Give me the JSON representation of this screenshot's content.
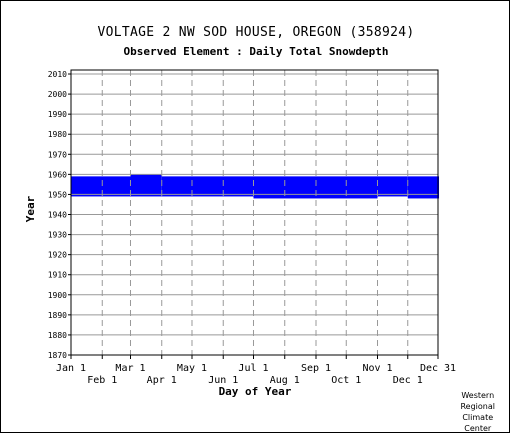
{
  "header": {
    "station_title": "VOLTAGE 2 NW SOD HOUSE, OREGON   (358924)",
    "element_title": "Observed Element : Daily Total Snowdepth"
  },
  "credit": [
    "Western",
    "Regional",
    "Climate",
    "Center"
  ],
  "colors": {
    "data": "#0000ff",
    "grid": "#999999",
    "axes": "#000000",
    "background": "#ffffff"
  },
  "chart_data": {
    "type": "heatmap",
    "title": "Observed Element : Daily Total Snowdepth",
    "xlabel": "Day of Year",
    "ylabel": "Year",
    "ylim": [
      1870,
      2012
    ],
    "xlim": [
      1,
      365
    ],
    "y_ticks": [
      1870,
      1880,
      1890,
      1900,
      1910,
      1920,
      1930,
      1940,
      1950,
      1960,
      1970,
      1980,
      1990,
      2000,
      2010
    ],
    "x_ticks_upper": [
      {
        "label": "Jan 1",
        "day": 1
      },
      {
        "label": "Mar 1",
        "day": 60
      },
      {
        "label": "May 1",
        "day": 121
      },
      {
        "label": "Jul 1",
        "day": 182
      },
      {
        "label": "Sep 1",
        "day": 244
      },
      {
        "label": "Nov 1",
        "day": 305
      },
      {
        "label": "Dec 31",
        "day": 365
      }
    ],
    "x_ticks_lower": [
      {
        "label": "Feb 1",
        "day": 32
      },
      {
        "label": "Apr 1",
        "day": 91
      },
      {
        "label": "Jun 1",
        "day": 152
      },
      {
        "label": "Aug 1",
        "day": 213
      },
      {
        "label": "Oct 1",
        "day": 274
      },
      {
        "label": "Dec 1",
        "day": 335
      }
    ],
    "grid": true,
    "coverage": [
      {
        "start_day": 1,
        "end_day": 59,
        "year_from": 1949,
        "year_to": 1958
      },
      {
        "start_day": 60,
        "end_day": 90,
        "year_from": 1949,
        "year_to": 1959
      },
      {
        "start_day": 91,
        "end_day": 181,
        "year_from": 1949,
        "year_to": 1958
      },
      {
        "start_day": 182,
        "end_day": 304,
        "year_from": 1948,
        "year_to": 1958
      },
      {
        "start_day": 305,
        "end_day": 334,
        "year_from": 1949,
        "year_to": 1958
      },
      {
        "start_day": 335,
        "end_day": 365,
        "year_from": 1948,
        "year_to": 1958
      }
    ]
  }
}
